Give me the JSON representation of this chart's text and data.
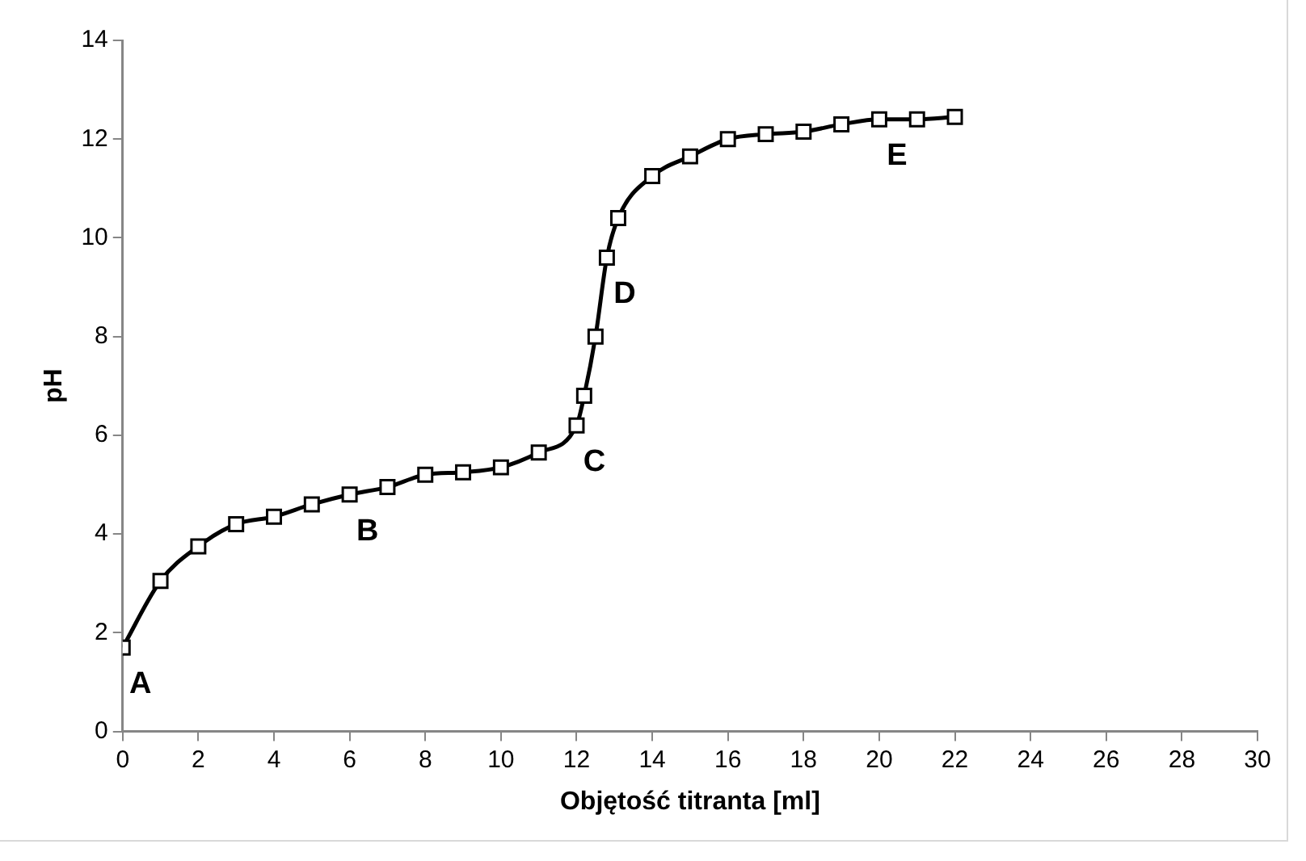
{
  "chart_data": {
    "type": "line",
    "xlabel": "Objętość titranta [ml]",
    "ylabel": "pH",
    "x": [
      0,
      1,
      2,
      3,
      4,
      5,
      6,
      7,
      8,
      9,
      10,
      11,
      12,
      12.2,
      12.5,
      12.8,
      13.1,
      14,
      15,
      16,
      17,
      18,
      19,
      20,
      21,
      22
    ],
    "series": [
      {
        "color": "#000000",
        "values": [
          1.7,
          3.05,
          3.75,
          4.2,
          4.35,
          4.6,
          4.8,
          4.95,
          5.2,
          5.25,
          5.35,
          5.65,
          6.2,
          6.8,
          8.0,
          9.6,
          10.4,
          11.25,
          11.65,
          12.0,
          12.1,
          12.15,
          12.3,
          12.4,
          12.4,
          12.45
        ]
      }
    ],
    "xlim": [
      0,
      30
    ],
    "xticks": [
      0,
      2,
      4,
      6,
      8,
      10,
      12,
      14,
      16,
      18,
      20,
      22,
      24,
      26,
      28,
      30
    ],
    "ylim": [
      0,
      14
    ],
    "yticks": [
      0,
      2,
      4,
      6,
      8,
      10,
      12,
      14
    ],
    "grid": false,
    "legend": false,
    "marker": "square",
    "line_style": "solid",
    "annotations": [
      {
        "text": "A",
        "x": 0,
        "y": 1.7
      },
      {
        "text": "B",
        "x": 6,
        "y": 4.8
      },
      {
        "text": "C",
        "x": 12,
        "y": 6.2
      },
      {
        "text": "D",
        "x": 12.8,
        "y": 9.6
      },
      {
        "text": "E",
        "x": 20,
        "y": 12.4
      }
    ]
  }
}
